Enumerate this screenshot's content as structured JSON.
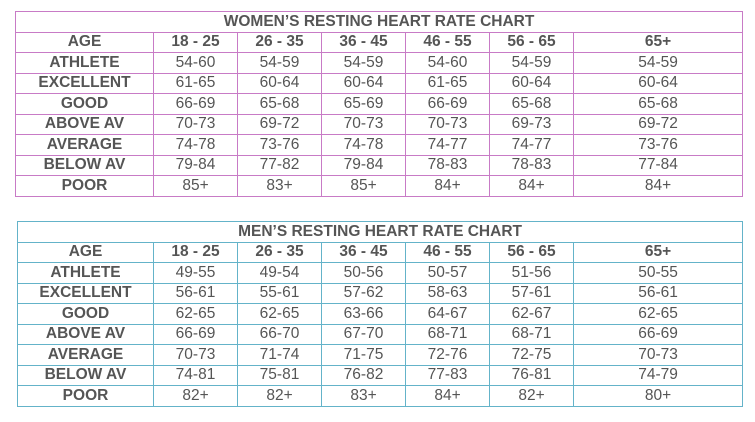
{
  "women": {
    "title": "WOMEN’S RESTING HEART RATE CHART",
    "border_color": "#c87bc6",
    "header": [
      "AGE",
      "18 - 25",
      "26 - 35",
      "36 - 45",
      "46 - 55",
      "56 - 65",
      "65+"
    ],
    "rows": [
      [
        "ATHLETE",
        "54-60",
        "54-59",
        "54-59",
        "54-60",
        "54-59",
        "54-59"
      ],
      [
        "EXCELLENT",
        "61-65",
        "60-64",
        "60-64",
        "61-65",
        "60-64",
        "60-64"
      ],
      [
        "GOOD",
        "66-69",
        "65-68",
        "65-69",
        "66-69",
        "65-68",
        "65-68"
      ],
      [
        "ABOVE AV",
        "70-73",
        "69-72",
        "70-73",
        "70-73",
        "69-73",
        "69-72"
      ],
      [
        "AVERAGE",
        "74-78",
        "73-76",
        "74-78",
        "74-77",
        "74-77",
        "73-76"
      ],
      [
        "BELOW AV",
        "79-84",
        "77-82",
        "79-84",
        "78-83",
        "78-83",
        "77-84"
      ],
      [
        "POOR",
        "85+",
        "83+",
        "85+",
        "84+",
        "84+",
        "84+"
      ]
    ]
  },
  "men": {
    "title": "MEN’S RESTING HEART RATE CHART",
    "border_color": "#64b3c9",
    "header": [
      "AGE",
      "18 - 25",
      "26 - 35",
      "36 - 45",
      "46 - 55",
      "56 - 65",
      "65+"
    ],
    "rows": [
      [
        "ATHLETE",
        "49-55",
        "49-54",
        "50-56",
        "50-57",
        "51-56",
        "50-55"
      ],
      [
        "EXCELLENT",
        "56-61",
        "55-61",
        "57-62",
        "58-63",
        "57-61",
        "56-61"
      ],
      [
        "GOOD",
        "62-65",
        "62-65",
        "63-66",
        "64-67",
        "62-67",
        "62-65"
      ],
      [
        "ABOVE AV",
        "66-69",
        "66-70",
        "67-70",
        "68-71",
        "68-71",
        "66-69"
      ],
      [
        "AVERAGE",
        "70-73",
        "71-74",
        "71-75",
        "72-76",
        "72-75",
        "70-73"
      ],
      [
        "BELOW AV",
        "74-81",
        "75-81",
        "76-82",
        "77-83",
        "76-81",
        "74-79"
      ],
      [
        "POOR",
        "82+",
        "82+",
        "83+",
        "84+",
        "82+",
        "80+"
      ]
    ]
  }
}
